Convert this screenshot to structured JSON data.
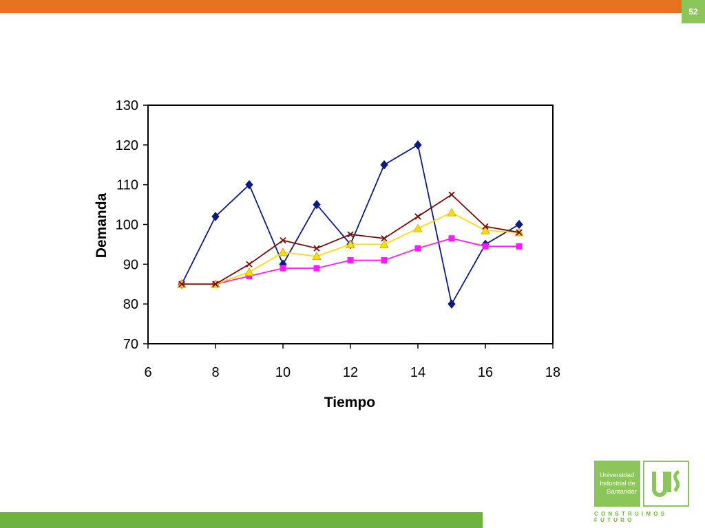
{
  "slide": {
    "page_number": "52"
  },
  "colors": {
    "top_bar": "#e8731e",
    "badge": "#8cc65a",
    "bottom_bar": "#6db33f",
    "series": [
      "#0d1a80",
      "#ff1aff",
      "#ffdd00",
      "#7a0a0a"
    ]
  },
  "logo": {
    "line1": "Universidad",
    "line2": "Industrial de",
    "line3": "Santander",
    "motto": "CONSTRUIMOS FUTURO"
  },
  "chart_data": {
    "type": "line",
    "xlabel": "Tiempo",
    "ylabel": "Demanda",
    "xlim": [
      6,
      18
    ],
    "ylim": [
      70,
      130
    ],
    "xticks": [
      6,
      8,
      10,
      12,
      14,
      16,
      18
    ],
    "yticks": [
      70,
      80,
      90,
      100,
      110,
      120,
      130
    ],
    "grid": false,
    "legend": "none",
    "series": [
      {
        "marker": "diamond",
        "color": "#0d1a80",
        "x": [
          7,
          8,
          9,
          10,
          11,
          12,
          13,
          14,
          15,
          16,
          17
        ],
        "y": [
          85,
          102,
          110,
          90,
          105,
          95,
          115,
          120,
          80,
          95,
          100
        ]
      },
      {
        "marker": "square",
        "color": "#ff1aff",
        "x": [
          7,
          8,
          9,
          10,
          11,
          12,
          13,
          14,
          15,
          16,
          17
        ],
        "y": [
          85,
          85,
          87,
          89,
          89,
          91,
          91,
          94,
          96.5,
          94.5,
          94.5
        ]
      },
      {
        "marker": "triangle",
        "color": "#ffdd00",
        "x": [
          7,
          8,
          9,
          10,
          11,
          12,
          13,
          14,
          15,
          16,
          17
        ],
        "y": [
          85,
          85,
          88,
          93,
          92,
          95,
          95,
          99,
          103,
          98.5,
          98
        ]
      },
      {
        "marker": "x",
        "color": "#7a0a0a",
        "x": [
          7,
          8,
          9,
          10,
          11,
          12,
          13,
          14,
          15,
          16,
          17
        ],
        "y": [
          85,
          85,
          90,
          96,
          94,
          97.5,
          96.5,
          102,
          107.5,
          99.5,
          98
        ]
      }
    ]
  }
}
